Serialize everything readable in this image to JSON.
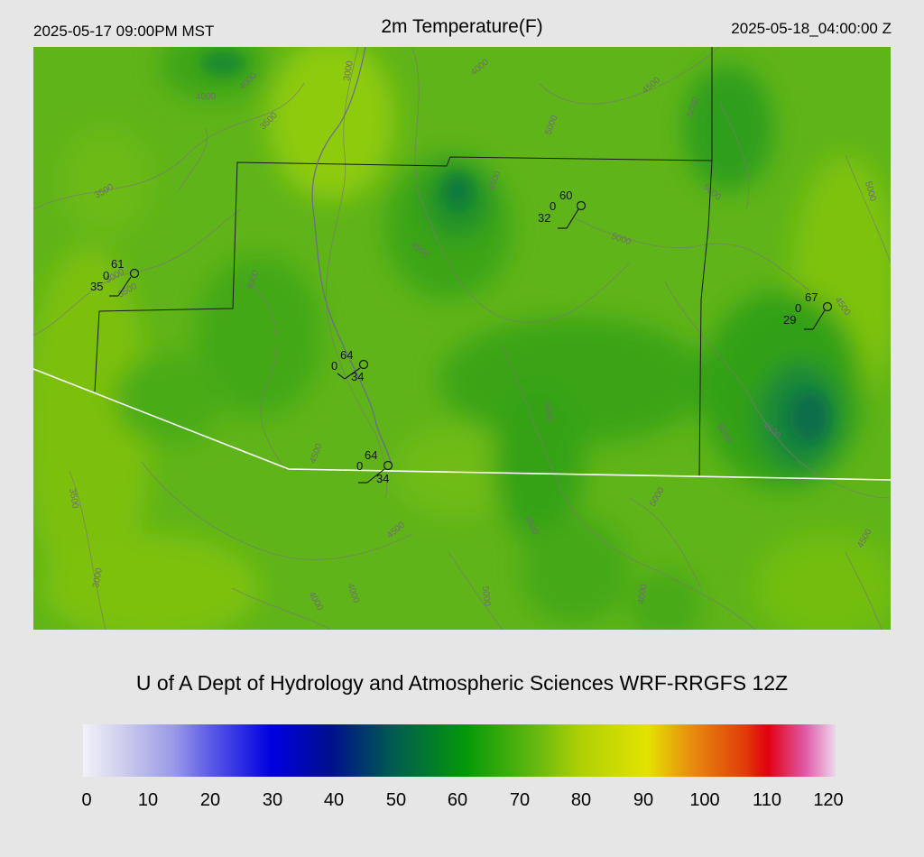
{
  "header": {
    "local_time": "2025-05-17 09:00PM MST",
    "title": "2m Temperature(F)",
    "utc_time": "2025-05-18_04:00:00 Z"
  },
  "contours": [
    "3000",
    "3500",
    "4000",
    "4000",
    "3500",
    "3000",
    "3500",
    "4000",
    "4500",
    "5000",
    "4500",
    "5000",
    "4500",
    "5000",
    "5000",
    "4500",
    "5000",
    "4000",
    "4500",
    "3500",
    "3000",
    "4000",
    "4500",
    "4000",
    "5000",
    "4500",
    "5000",
    "4500",
    "5000",
    "5000",
    "4500",
    "4000"
  ],
  "stations": [
    {
      "temp": "61",
      "gust": "0",
      "dew": "35"
    },
    {
      "temp": "60",
      "gust": "0",
      "dew": "32"
    },
    {
      "temp": "67",
      "gust": "0",
      "dew": "29"
    },
    {
      "temp": "64",
      "gust": "0",
      "dew": "34"
    },
    {
      "temp": "64",
      "gust": "0",
      "dew": "34"
    }
  ],
  "footer": {
    "credit": "U of A Dept of Hydrology and Atmospheric Sciences WRF-RRGFS 12Z"
  },
  "colorbar": {
    "ticks": [
      "0",
      "10",
      "20",
      "30",
      "40",
      "50",
      "60",
      "70",
      "80",
      "90",
      "100",
      "110",
      "120"
    ]
  }
}
